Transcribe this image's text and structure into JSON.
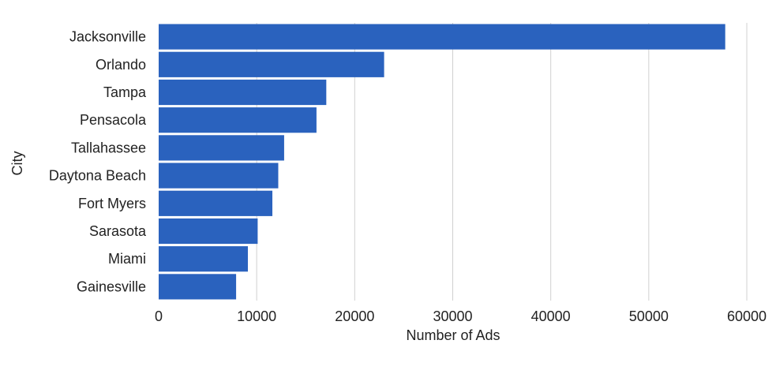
{
  "chart_data": {
    "type": "bar",
    "orientation": "horizontal",
    "title": "",
    "xlabel": "Number of Ads",
    "ylabel": "City",
    "categories": [
      "Jacksonville",
      "Orlando",
      "Tampa",
      "Pensacola",
      "Tallahassee",
      "Daytona Beach",
      "Fort Myers",
      "Sarasota",
      "Miami",
      "Gainesville"
    ],
    "values": [
      57800,
      23000,
      17100,
      16100,
      12800,
      12200,
      11600,
      10100,
      9100,
      7900
    ],
    "xlim": [
      0,
      60000
    ],
    "xticks": [
      "0",
      "10000",
      "20000",
      "30000",
      "40000",
      "50000",
      "60000"
    ],
    "grid": "vertical",
    "bar_color": "#2a62be",
    "grid_color": "#d0d0d0"
  }
}
